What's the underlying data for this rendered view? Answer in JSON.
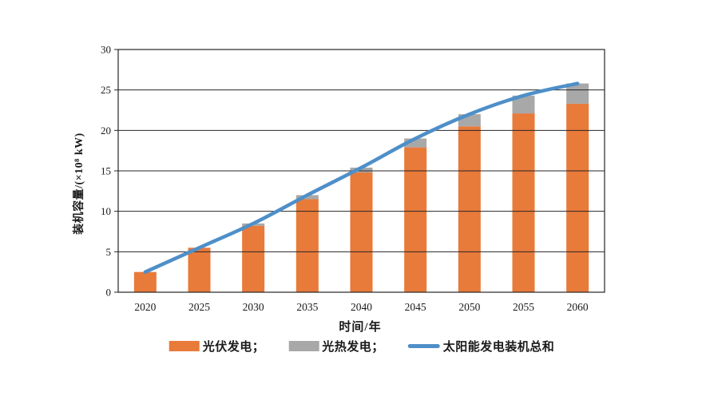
{
  "figure": {
    "background": "#ffffff"
  },
  "chart_data": {
    "type": "bar",
    "subtype": "stacked-bars-with-total-line",
    "title": "",
    "categories": [
      "2020",
      "2025",
      "2030",
      "2035",
      "2040",
      "2045",
      "2050",
      "2055",
      "2060"
    ],
    "series": [
      {
        "name": "光伏发电",
        "type": "bar",
        "color": "#E87A3A",
        "values": [
          2.5,
          5.5,
          8.2,
          11.5,
          14.8,
          17.9,
          20.5,
          22.1,
          23.3
        ]
      },
      {
        "name": "光热发电",
        "type": "bar",
        "color": "#A8A8A8",
        "values": [
          0,
          0,
          0.3,
          0.5,
          0.6,
          1.1,
          1.5,
          2.2,
          2.5
        ]
      },
      {
        "name": "太阳能发电装机总和",
        "type": "line",
        "color": "#4E8FC8",
        "values": [
          2.5,
          5.5,
          8.5,
          12.0,
          15.4,
          19.0,
          22.0,
          24.3,
          25.8
        ]
      }
    ],
    "xlabel": "时间/年",
    "ylabel": "装机容量/(×10⁸ kW)",
    "ylim": [
      0,
      30
    ],
    "ytick_step": 5,
    "yticks": [
      0,
      5,
      10,
      15,
      20,
      25,
      30
    ],
    "grid": true,
    "gridline_color": "#262626",
    "axis_color": "#262626",
    "legend_position": "bottom"
  },
  "legend": {
    "items": [
      {
        "label": "光伏发电；",
        "swatch": "bar",
        "color": "#E87A3A"
      },
      {
        "label": "光热发电；",
        "swatch": "bar",
        "color": "#A8A8A8"
      },
      {
        "label": "太阳能发电装机总和",
        "swatch": "line",
        "color": "#4E8FC8"
      }
    ]
  }
}
